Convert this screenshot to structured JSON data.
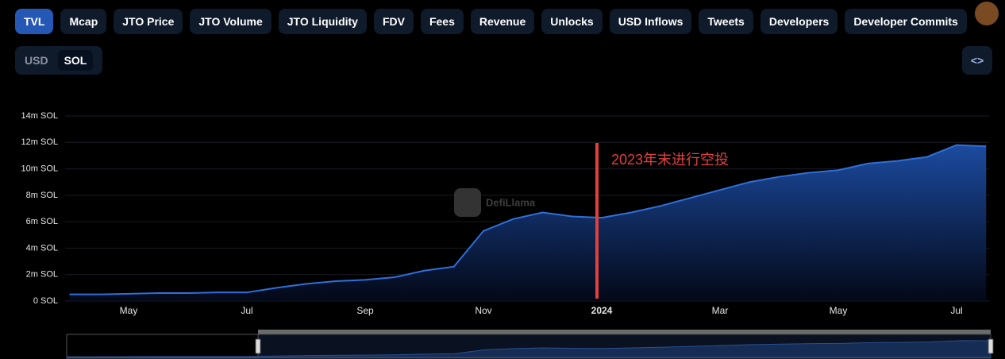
{
  "tabs": [
    "TVL",
    "Mcap",
    "JTO Price",
    "JTO Volume",
    "JTO Liquidity",
    "FDV",
    "Fees",
    "Revenue",
    "Unlocks",
    "USD Inflows",
    "Tweets",
    "Developers",
    "Developer Commits"
  ],
  "active_tab": 0,
  "currency_toggle": [
    "USD",
    "SOL"
  ],
  "active_currency": 1,
  "embed_button": "<>",
  "chart_data": {
    "type": "area",
    "watermark": "DefiLlama",
    "annotation": "2023年末进行空投",
    "annotation_color": "#e0413f",
    "color": "#2f6fdc",
    "categories": [
      null,
      null,
      "May",
      null,
      null,
      null,
      "Jul",
      null,
      null,
      null,
      "Sep",
      null,
      null,
      null,
      "Nov",
      null,
      null,
      null,
      "2024",
      null,
      null,
      null,
      "Mar",
      null,
      null,
      null,
      "May",
      null,
      null,
      null,
      "Jul",
      null
    ],
    "values": [
      500000,
      500000,
      550000,
      600000,
      600000,
      650000,
      650000,
      1000000,
      1300000,
      1500000,
      1600000,
      1800000,
      2300000,
      2600000,
      5300000,
      6200000,
      6700000,
      6400000,
      6300000,
      6700000,
      7200000,
      7800000,
      8400000,
      9000000,
      9400000,
      9700000,
      9900000,
      10400000,
      10600000,
      10900000,
      11800000,
      11700000
    ],
    "ylim": [
      0,
      14000000
    ],
    "yticks": [
      {
        "value": 0,
        "label": "0 SOL"
      },
      {
        "value": 2000000,
        "label": "2m SOL"
      },
      {
        "value": 4000000,
        "label": "4m SOL"
      },
      {
        "value": 6000000,
        "label": "6m SOL"
      },
      {
        "value": 8000000,
        "label": "8m SOL"
      },
      {
        "value": 10000000,
        "label": "10m SOL"
      },
      {
        "value": 12000000,
        "label": "12m SOL"
      },
      {
        "value": 14000000,
        "label": "14m SOL"
      }
    ],
    "grid": true
  }
}
